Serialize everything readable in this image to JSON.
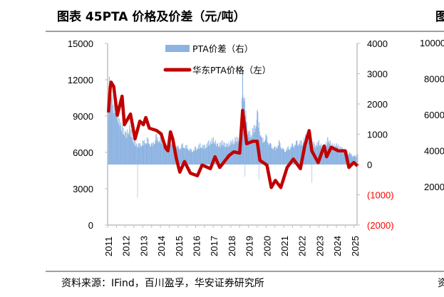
{
  "header": {
    "title": "图表 45PTA 价格及价差（元/吨）"
  },
  "footer": {
    "source": "资料来源：IFind，百川盈孚，华安证券研究所"
  },
  "neighbor_fragment": {
    "title_char": "图",
    "source_char": "资",
    "ticks": [
      "10000",
      "8000",
      "6000",
      "4000",
      "2000"
    ]
  },
  "colors": {
    "price": "#c00000",
    "spread": "#8db3e2",
    "negative_label": "#ff0000",
    "axis": "#bfbfbf"
  },
  "chart_data": {
    "type": "line+bar",
    "title": "图表 45PTA 价格及价差（元/吨）",
    "x_ticks": [
      "2011",
      "2012",
      "2013",
      "2014",
      "2015",
      "2016",
      "2017",
      "2018",
      "2019",
      "2020",
      "2021",
      "2022",
      "2023",
      "2024",
      "2025"
    ],
    "left_axis": {
      "range": [
        0,
        15000
      ],
      "ticks": [
        "0",
        "3000",
        "6000",
        "9000",
        "12000",
        "15000"
      ]
    },
    "right_axis": {
      "range": [
        -2000,
        4000
      ],
      "ticks": [
        "(2000)",
        "(1000)",
        "0",
        "1000",
        "2000",
        "3000",
        "4000"
      ]
    },
    "legend": [
      {
        "label": "PTA价差（右）",
        "kind": "bar"
      },
      {
        "label": "华东PTA价格（左）",
        "kind": "line"
      }
    ],
    "series": [
      {
        "name": "华东PTA价格（左）",
        "axis": "left",
        "type": "line",
        "x": [
          2011.05,
          2011.15,
          2011.2,
          2011.35,
          2011.55,
          2011.82,
          2011.95,
          2012.3,
          2012.56,
          2012.83,
          2013.03,
          2013.17,
          2013.37,
          2013.77,
          2014.04,
          2014.3,
          2014.43,
          2014.57,
          2014.7,
          2014.9,
          2015.1,
          2015.37,
          2015.7,
          2016.1,
          2016.37,
          2016.84,
          2017.1,
          2017.37,
          2017.9,
          2018.17,
          2018.5,
          2018.67,
          2018.8,
          2018.9,
          2019.25,
          2019.5,
          2019.65,
          2020.05,
          2020.3,
          2020.53,
          2020.84,
          2021.2,
          2021.55,
          2021.95,
          2022.2,
          2022.45,
          2022.6,
          2022.96,
          2023.3,
          2023.44,
          2023.7,
          2024.1,
          2024.5,
          2024.71,
          2024.98,
          2025.2
        ],
        "y": [
          9300,
          11400,
          11800,
          11430,
          9070,
          10640,
          8290,
          9170,
          7110,
          8580,
          8290,
          8880,
          8000,
          7820,
          7530,
          6350,
          6130,
          7700,
          7110,
          5540,
          4370,
          5250,
          4290,
          4075,
          4960,
          4660,
          5640,
          4760,
          5740,
          6050,
          5940,
          9470,
          7900,
          6720,
          6920,
          6920,
          5350,
          4960,
          3100,
          3690,
          3100,
          4760,
          5450,
          4660,
          6530,
          7800,
          6130,
          5160,
          6530,
          5640,
          6430,
          6130,
          6130,
          4760,
          5170,
          4880
        ]
      },
      {
        "name": "PTA价差（右）",
        "axis": "right",
        "type": "bar",
        "x": [
          2011.0,
          2011.1,
          2011.25,
          2011.5,
          2011.75,
          2012.0,
          2012.25,
          2012.5,
          2012.7,
          2012.75,
          2013.0,
          2013.25,
          2013.5,
          2013.75,
          2014.0,
          2014.25,
          2014.5,
          2014.75,
          2015.0,
          2015.25,
          2015.5,
          2015.75,
          2016.0,
          2016.25,
          2016.5,
          2016.75,
          2017.0,
          2017.25,
          2017.5,
          2017.75,
          2018.0,
          2018.25,
          2018.5,
          2018.67,
          2018.8,
          2018.9,
          2019.0,
          2019.25,
          2019.5,
          2019.6,
          2019.75,
          2020.0,
          2020.25,
          2020.5,
          2020.75,
          2021.0,
          2021.25,
          2021.5,
          2021.75,
          2022.0,
          2022.25,
          2022.5,
          2022.6,
          2022.75,
          2023.0,
          2023.25,
          2023.5,
          2023.75,
          2024.0,
          2024.25,
          2024.5,
          2024.75,
          2025.0,
          2025.2
        ],
        "y": [
          2000,
          2900,
          2300,
          1900,
          1400,
          1100,
          1300,
          800,
          -1100,
          700,
          800,
          900,
          700,
          1000,
          900,
          700,
          900,
          800,
          600,
          700,
          650,
          500,
          600,
          700,
          650,
          800,
          900,
          700,
          800,
          700,
          800,
          900,
          1000,
          3000,
          -400,
          1400,
          1100,
          1200,
          1800,
          -500,
          900,
          1000,
          700,
          600,
          800,
          500,
          600,
          700,
          800,
          800,
          1000,
          900,
          -600,
          700,
          800,
          600,
          900,
          700,
          700,
          600,
          500,
          400,
          300,
          350
        ]
      }
    ]
  }
}
